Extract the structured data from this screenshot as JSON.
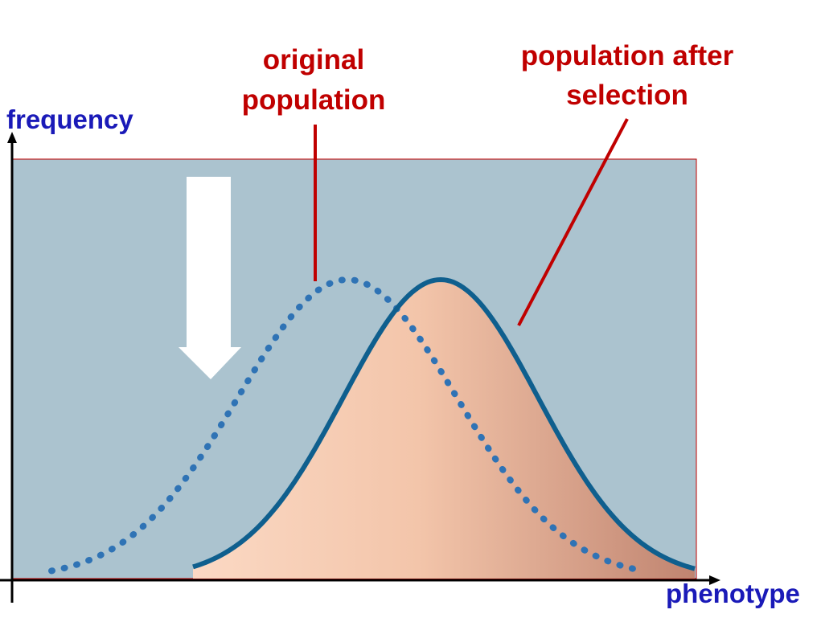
{
  "axes": {
    "y_label": "frequency",
    "x_label": "phenotype"
  },
  "labels": {
    "original": [
      "original",
      "population"
    ],
    "after": [
      "population after",
      "selection"
    ]
  }
}
